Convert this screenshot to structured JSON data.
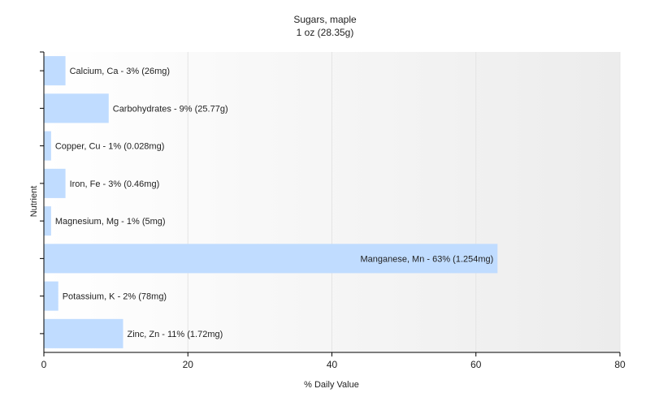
{
  "chart_data": {
    "type": "bar",
    "orientation": "horizontal",
    "title": "Sugars, maple",
    "subtitle": "1 oz (28.35g)",
    "xlabel": "% Daily Value",
    "ylabel": "Nutrient",
    "xlim": [
      0,
      80
    ],
    "x_ticks": [
      0,
      20,
      40,
      60,
      80
    ],
    "grid": true,
    "categories": [
      "Calcium, Ca",
      "Carbohydrates",
      "Copper, Cu",
      "Iron, Fe",
      "Magnesium, Mg",
      "Manganese, Mn",
      "Potassium, K",
      "Zinc, Zn"
    ],
    "values": [
      3,
      9,
      1,
      3,
      1,
      63,
      2,
      11
    ],
    "labels": [
      "Calcium, Ca - 3% (26mg)",
      "Carbohydrates - 9% (25.77g)",
      "Copper, Cu - 1% (0.028mg)",
      "Iron, Fe - 3% (0.46mg)",
      "Magnesium, Mg - 1% (5mg)",
      "Manganese, Mn - 63% (1.254mg)",
      "Potassium, K - 2% (78mg)",
      "Zinc, Zn - 11% (1.72mg)"
    ],
    "colors": {
      "bar": "#c0dcff",
      "axis": "#000000",
      "grid": "#e4e4e4",
      "plot_bg_light": "#ffffff",
      "plot_bg_dark": "#ececec"
    }
  }
}
